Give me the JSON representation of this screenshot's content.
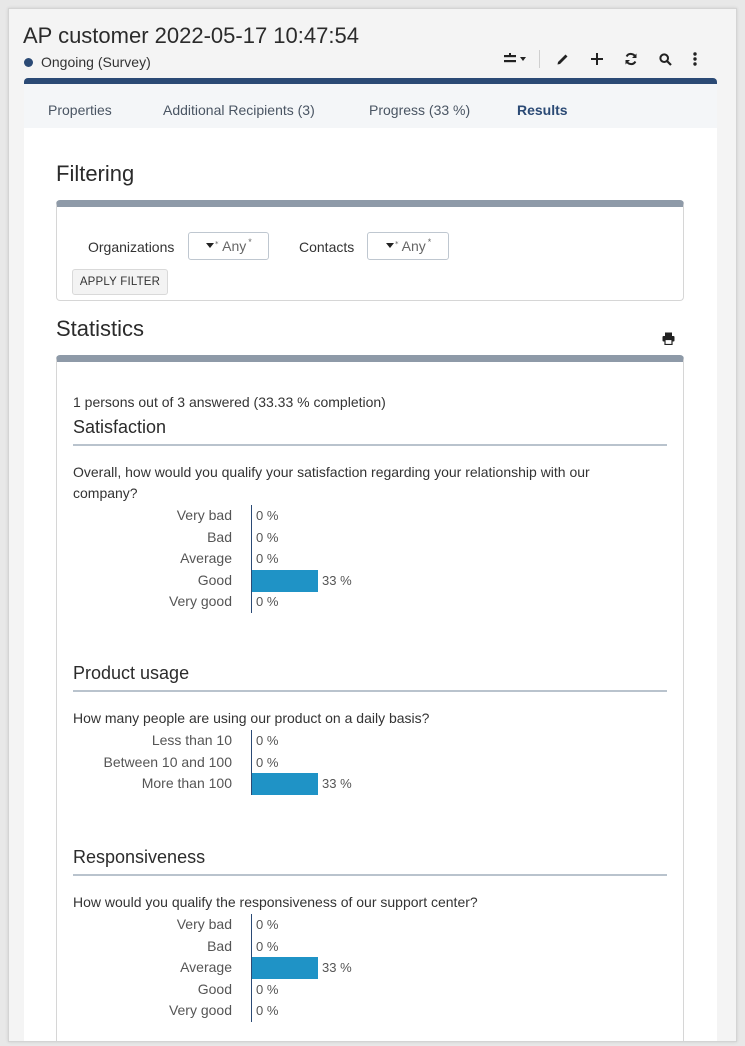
{
  "window": {
    "title": "AP customer 2022-05-17 10:47:54",
    "status": "Ongoing",
    "status_type": "(Survey)",
    "status_color": "#2b4a75",
    "accent_color": "#2b4a75",
    "toolbar_icons": [
      "layout-dropdown-icon",
      "edit-icon",
      "add-icon",
      "refresh-icon",
      "search-icon",
      "more-icon"
    ]
  },
  "tabs": [
    {
      "label": "Properties",
      "active": false
    },
    {
      "label": "Additional Recipients (3)",
      "active": false
    },
    {
      "label": "Progress (33 %)",
      "active": false
    },
    {
      "label": "Results",
      "active": true
    }
  ],
  "filtering": {
    "title": "Filtering",
    "organizations_label": "Organizations",
    "organizations_value": "Any",
    "contacts_label": "Contacts",
    "contacts_value": "Any",
    "apply_label": "APPLY FILTER"
  },
  "statistics": {
    "title": "Statistics",
    "completion": "1 persons out of 3 answered (33.33 % completion)",
    "bar_color": "#1f93c6",
    "questions": [
      {
        "title": "Satisfaction",
        "text": "Overall, how would you qualify your satisfaction regarding your relationship with our company?",
        "answers": [
          {
            "label": "Very bad",
            "percent": 0,
            "percent_label": "0 %"
          },
          {
            "label": "Bad",
            "percent": 0,
            "percent_label": "0 %"
          },
          {
            "label": "Average",
            "percent": 0,
            "percent_label": "0 %"
          },
          {
            "label": "Good",
            "percent": 33,
            "percent_label": "33 %"
          },
          {
            "label": "Very good",
            "percent": 0,
            "percent_label": "0 %"
          }
        ]
      },
      {
        "title": "Product usage",
        "text": "How many people are using our product on a daily basis?",
        "answers": [
          {
            "label": "Less than 10",
            "percent": 0,
            "percent_label": "0 %"
          },
          {
            "label": "Between 10 and 100",
            "percent": 0,
            "percent_label": "0 %"
          },
          {
            "label": "More than 100",
            "percent": 33,
            "percent_label": "33 %"
          }
        ]
      },
      {
        "title": "Responsiveness",
        "text": "How would you qualify the responsiveness of our support center?",
        "answers": [
          {
            "label": "Very bad",
            "percent": 0,
            "percent_label": "0 %"
          },
          {
            "label": "Bad",
            "percent": 0,
            "percent_label": "0 %"
          },
          {
            "label": "Average",
            "percent": 33,
            "percent_label": "33 %"
          },
          {
            "label": "Good",
            "percent": 0,
            "percent_label": "0 %"
          },
          {
            "label": "Very good",
            "percent": 0,
            "percent_label": "0 %"
          }
        ]
      }
    ]
  }
}
